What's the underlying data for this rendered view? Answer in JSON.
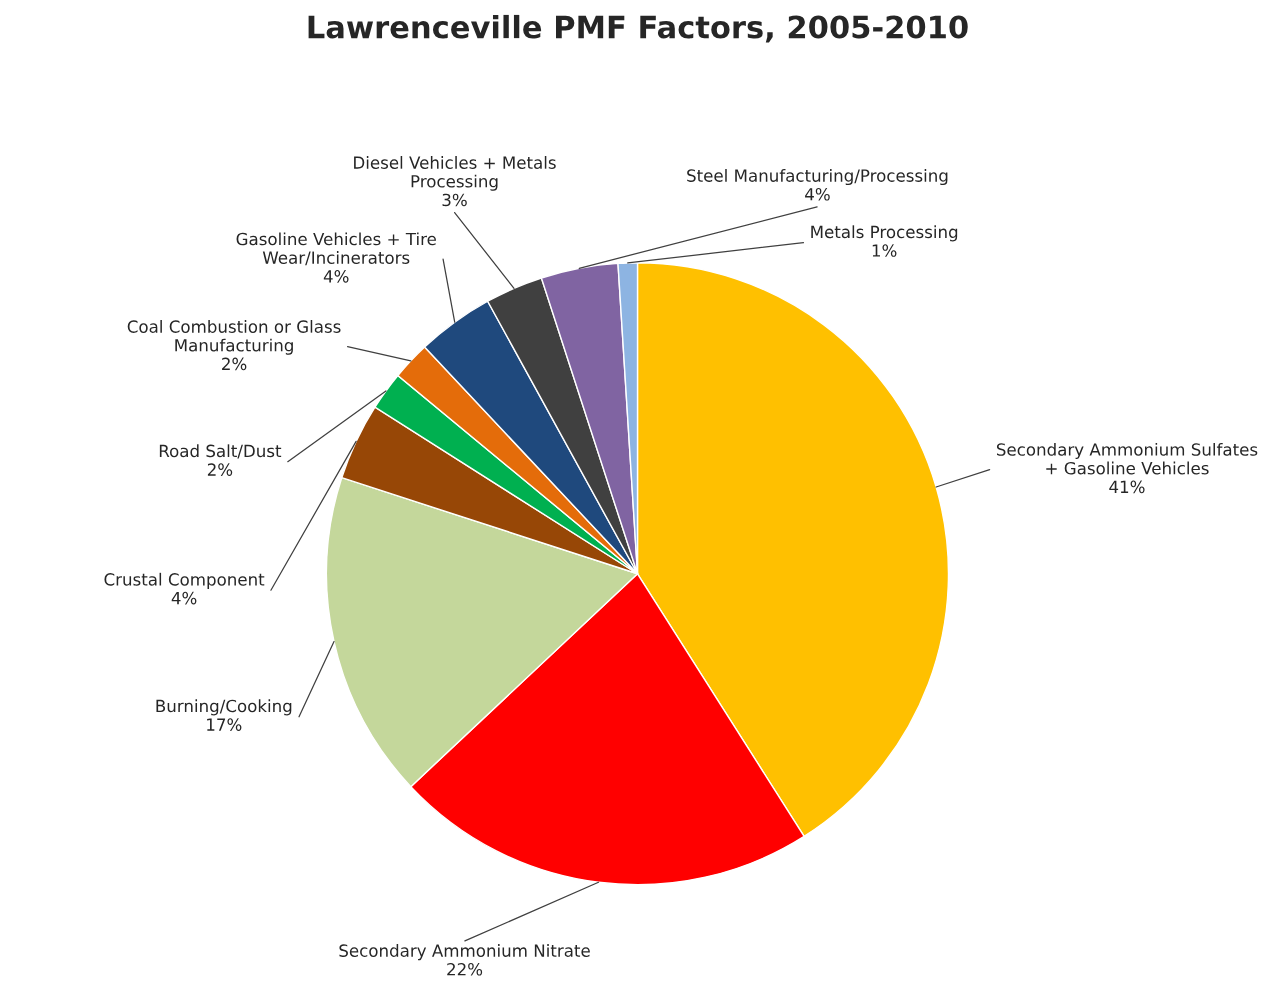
{
  "chart_data": {
    "type": "pie",
    "title": "Lawrenceville PMF Factors, 2005-2010",
    "categories": [
      "Secondary Ammonium Sulfates\n+ Gasoline Vehicles",
      "Secondary Ammonium Nitrate",
      "Burning/Cooking",
      "Crustal Component",
      "Road Salt/Dust",
      "Coal Combustion or Glass\nManufacturing",
      "Gasoline Vehicles + Tire\nWear/Incinerators",
      "Diesel Vehicles + Metals\nProcessing",
      "Steel Manufacturing/Processing",
      "Metals Processing"
    ],
    "values": [
      41,
      22,
      17,
      4,
      2,
      2,
      4,
      3,
      4,
      1
    ],
    "value_labels": [
      "41%",
      "22%",
      "17%",
      "4%",
      "2%",
      "2%",
      "4%",
      "3%",
      "4%",
      "1%"
    ],
    "colors": [
      "#ffc000",
      "#ff0000",
      "#c4d79b",
      "#974706",
      "#00b050",
      "#e46c0a",
      "#1f497d",
      "#404040",
      "#8064a2",
      "#8db4e2"
    ],
    "legend": false
  }
}
